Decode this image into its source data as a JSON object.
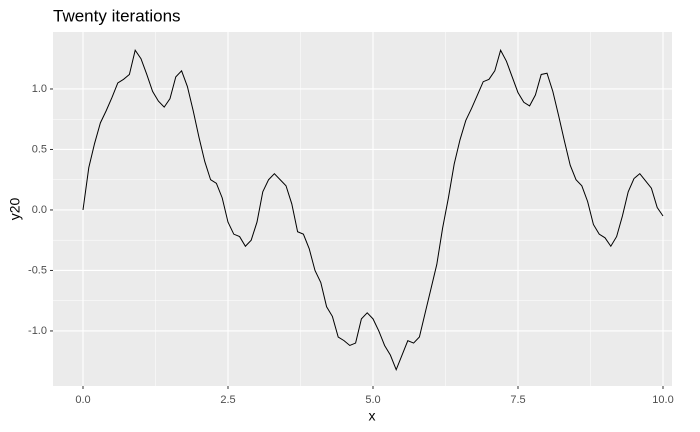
{
  "chart_data": {
    "type": "line",
    "title": "Twenty iterations",
    "x_label": "x",
    "y_label": "y20",
    "x": [
      0,
      0.1,
      0.2,
      0.3,
      0.4,
      0.5,
      0.6,
      0.7,
      0.8,
      0.9,
      1,
      1.1,
      1.2,
      1.3,
      1.4,
      1.5,
      1.6,
      1.7,
      1.8,
      1.9,
      2,
      2.1,
      2.2,
      2.3,
      2.4,
      2.5,
      2.6,
      2.7,
      2.8,
      2.9,
      3,
      3.1,
      3.2,
      3.3,
      3.4,
      3.5,
      3.6,
      3.7,
      3.8,
      3.9,
      4,
      4.1,
      4.2,
      4.3,
      4.4,
      4.5,
      4.6,
      4.7,
      4.8,
      4.9,
      5,
      5.1,
      5.2,
      5.3,
      5.4,
      5.5,
      5.6,
      5.7,
      5.8,
      5.9,
      6,
      6.1,
      6.2,
      6.3,
      6.4,
      6.5,
      6.6,
      6.7,
      6.8,
      6.9,
      7,
      7.1,
      7.2,
      7.3,
      7.4,
      7.5,
      7.6,
      7.7,
      7.8,
      7.9,
      8,
      8.1,
      8.2,
      8.3,
      8.4,
      8.5,
      8.6,
      8.7,
      8.8,
      8.9,
      9,
      9.1,
      9.2,
      9.3,
      9.4,
      9.5,
      9.6,
      9.7,
      9.8,
      9.9,
      10
    ],
    "series": [
      {
        "name": "y20",
        "color": "#000000",
        "values": [
          0,
          0.35,
          0.55,
          0.72,
          0.82,
          0.93,
          1.05,
          1.08,
          1.12,
          1.32,
          1.25,
          1.12,
          0.98,
          0.9,
          0.85,
          0.92,
          1.1,
          1.15,
          1.02,
          0.82,
          0.6,
          0.4,
          0.25,
          0.22,
          0.1,
          -0.1,
          -0.2,
          -0.22,
          -0.3,
          -0.25,
          -0.1,
          0.15,
          0.25,
          0.3,
          0.25,
          0.2,
          0.05,
          -0.18,
          -0.2,
          -0.32,
          -0.5,
          -0.6,
          -0.8,
          -0.88,
          -1.05,
          -1.08,
          -1.12,
          -1.1,
          -0.9,
          -0.85,
          -0.9,
          -1,
          -1.12,
          -1.2,
          -1.32,
          -1.2,
          -1.08,
          -1.1,
          -1.05,
          -0.85,
          -0.65,
          -0.45,
          -0.15,
          0.1,
          0.38,
          0.58,
          0.74,
          0.84,
          0.95,
          1.06,
          1.08,
          1.15,
          1.32,
          1.23,
          1.1,
          0.97,
          0.89,
          0.86,
          0.95,
          1.12,
          1.13,
          0.98,
          0.78,
          0.57,
          0.37,
          0.25,
          0.2,
          0.07,
          -0.12,
          -0.2,
          -0.23,
          -0.3,
          -0.22,
          -0.05,
          0.15,
          0.26,
          0.3,
          0.24,
          0.18,
          0.02,
          -0.05
        ]
      }
    ],
    "xlim": [
      -0.517,
      10.155
    ],
    "ylim": [
      -1.455,
      1.471
    ],
    "xticks": [
      {
        "value": 0,
        "label": "0.0"
      },
      2.5,
      {
        "value": 5,
        "label": "5.0"
      },
      7.5,
      {
        "value": 10,
        "label": "10.0"
      }
    ],
    "yticks": [
      {
        "value": -1,
        "label": "-1.0"
      },
      -0.5,
      {
        "value": 0,
        "label": "0.0"
      },
      0.5,
      {
        "value": 1,
        "label": "1.0"
      }
    ],
    "grid": true
  }
}
